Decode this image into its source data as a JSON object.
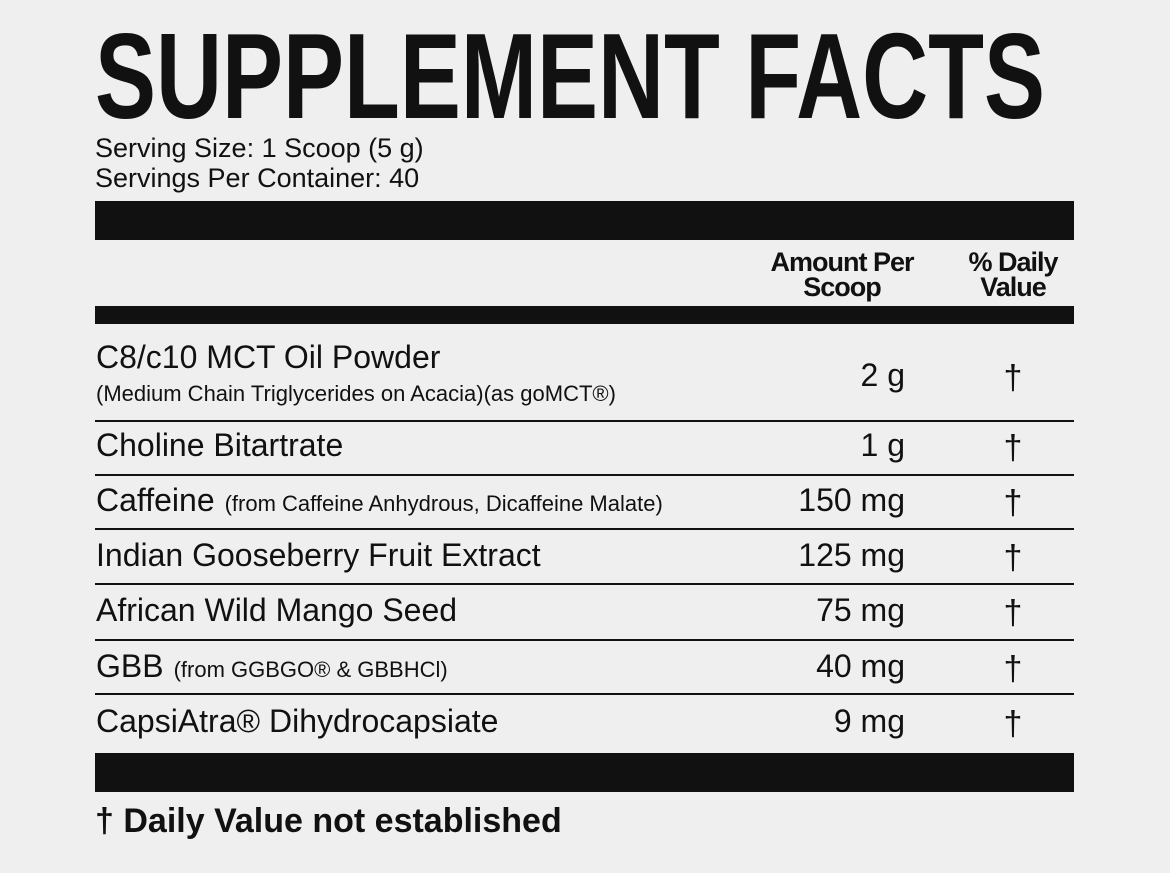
{
  "header": {
    "title": "SUPPLEMENT FACTS",
    "serving_size": "Serving Size: 1 Scoop (5 g)",
    "servings_per_container": "Servings Per Container: 40"
  },
  "table": {
    "columns": [
      [
        "Amount Per",
        "Scoop"
      ],
      [
        "% Daily",
        "Value"
      ]
    ],
    "rows": [
      {
        "name": "C8/c10 MCT Oil Powder",
        "description": "(Medium Chain Triglycerides on Acacia)(as goMCT®)",
        "amount": "2 g",
        "daily_value": "†"
      },
      {
        "name": "Choline Bitartrate",
        "amount": "1 g",
        "daily_value": "†"
      },
      {
        "name": "Caffeine",
        "note": "(from Caffeine Anhydrous, Dicaffeine Malate)",
        "amount": "150 mg",
        "daily_value": "†"
      },
      {
        "name": "Indian Gooseberry Fruit Extract",
        "amount": "125 mg",
        "daily_value": "†"
      },
      {
        "name": "African Wild Mango Seed",
        "amount": "75 mg",
        "daily_value": "†"
      },
      {
        "name": "GBB",
        "note": "(from GGBGO® & GBBHCl)",
        "amount": "40 mg",
        "daily_value": "†"
      },
      {
        "name": "CapsiAtra® Dihydrocapsiate",
        "amount": "9 mg",
        "daily_value": "†"
      }
    ]
  },
  "footnote": "† Daily Value not established"
}
